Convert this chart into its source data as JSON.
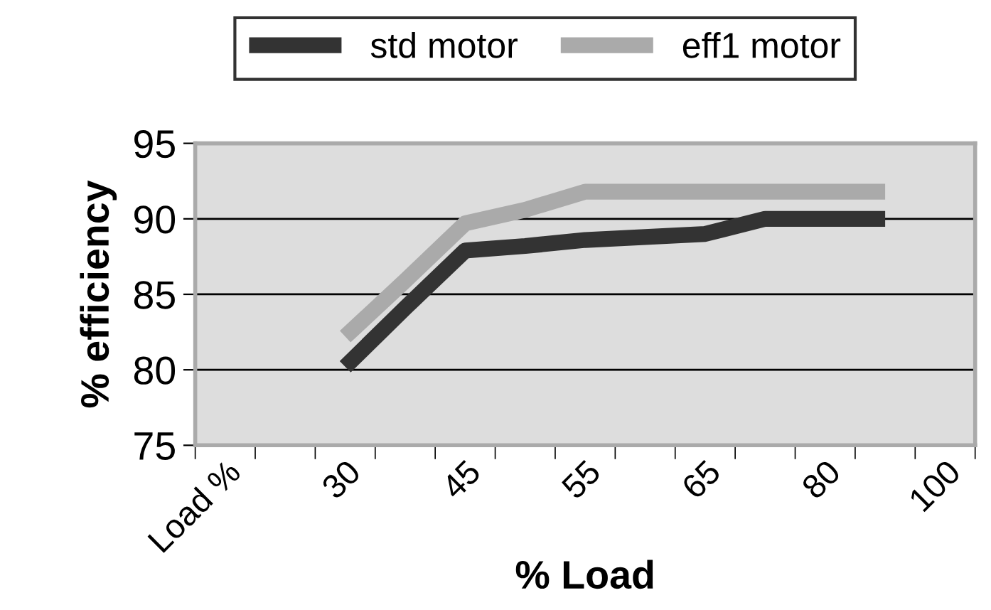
{
  "chart_data": {
    "type": "line",
    "xlabel": "% Load",
    "ylabel": "% efficiency",
    "categories": [
      "Load %",
      null,
      "30",
      null,
      "45",
      null,
      "55",
      null,
      "65",
      null,
      "80",
      null,
      "100"
    ],
    "series": [
      {
        "name": "std motor",
        "color": "#333333",
        "values": [
          null,
          null,
          80.2,
          84.1,
          87.9,
          88.2,
          88.6,
          88.8,
          89.0,
          90.0,
          90.0,
          90.0,
          null
        ]
      },
      {
        "name": "eff1 motor",
        "color": "#aaaaaa",
        "values": [
          null,
          null,
          82.2,
          85.9,
          89.7,
          90.6,
          91.8,
          91.8,
          91.8,
          91.8,
          91.8,
          91.8,
          null
        ]
      }
    ],
    "ylim": [
      75,
      95
    ],
    "yticks": [
      75,
      80,
      85,
      90,
      95
    ],
    "grid": "y",
    "legend": "top",
    "marker": "none",
    "line_style": "solid"
  }
}
